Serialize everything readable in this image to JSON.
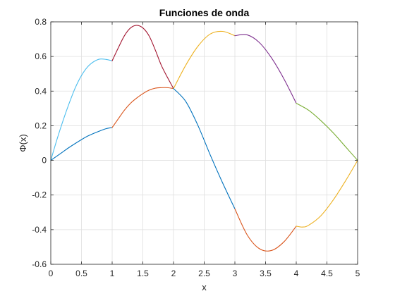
{
  "chart_data": {
    "type": "line",
    "title": "Funciones de onda",
    "xlabel": "x",
    "ylabel": "Φ(x)",
    "xlim": [
      0,
      5
    ],
    "ylim": [
      -0.6,
      0.8
    ],
    "xticks": [
      0,
      0.5,
      1,
      1.5,
      2,
      2.5,
      3,
      3.5,
      4,
      4.5,
      5
    ],
    "xtick_labels": [
      "0",
      "0.5",
      "1",
      "1.5",
      "2",
      "2.5",
      "3",
      "3.5",
      "4",
      "4.5",
      "5"
    ],
    "yticks": [
      -0.6,
      -0.4,
      -0.2,
      0,
      0.2,
      0.4,
      0.6,
      0.8
    ],
    "ytick_labels": [
      "-0.6",
      "-0.4",
      "-0.2",
      "0",
      "0.2",
      "0.4",
      "0.6",
      "0.8"
    ],
    "grid": true,
    "box": true,
    "series": [
      {
        "color": "#4DBEEE",
        "x": [
          0,
          0.1,
          0.2,
          0.3,
          0.4,
          0.5,
          0.6,
          0.7,
          0.8,
          0.9,
          1.0
        ],
        "y": [
          0,
          0.12,
          0.23,
          0.33,
          0.42,
          0.49,
          0.54,
          0.57,
          0.585,
          0.583,
          0.575
        ]
      },
      {
        "color": "#0072BD",
        "x": [
          0,
          0.1,
          0.2,
          0.3,
          0.4,
          0.5,
          0.6,
          0.7,
          0.8,
          0.9,
          1.0
        ],
        "y": [
          0,
          0.025,
          0.05,
          0.075,
          0.098,
          0.12,
          0.14,
          0.156,
          0.17,
          0.183,
          0.19
        ]
      },
      {
        "color": "#A2142F",
        "x": [
          1.0,
          1.1,
          1.2,
          1.3,
          1.4,
          1.5,
          1.6,
          1.7,
          1.8,
          1.9,
          2.0
        ],
        "y": [
          0.575,
          0.65,
          0.72,
          0.765,
          0.78,
          0.765,
          0.72,
          0.64,
          0.55,
          0.48,
          0.415
        ]
      },
      {
        "color": "#D95319",
        "x": [
          1.0,
          1.1,
          1.2,
          1.3,
          1.4,
          1.5,
          1.6,
          1.7,
          1.8,
          1.9,
          2.0
        ],
        "y": [
          0.19,
          0.24,
          0.29,
          0.33,
          0.36,
          0.385,
          0.405,
          0.417,
          0.42,
          0.42,
          0.415
        ]
      },
      {
        "color": "#EDB120",
        "x": [
          2.0,
          2.2,
          2.4,
          2.6,
          2.8,
          3.0
        ],
        "y": [
          0.415,
          0.55,
          0.66,
          0.73,
          0.745,
          0.72
        ]
      },
      {
        "color": "#0072BD",
        "x": [
          2.0,
          2.2,
          2.4,
          2.6,
          2.8,
          3.0
        ],
        "y": [
          0.415,
          0.34,
          0.2,
          0.03,
          -0.13,
          -0.28
        ]
      },
      {
        "color": "#7E2F8E",
        "x": [
          3.0,
          3.2,
          3.4,
          3.6,
          3.8,
          4.0
        ],
        "y": [
          0.72,
          0.725,
          0.68,
          0.59,
          0.47,
          0.33
        ]
      },
      {
        "color": "#D95319",
        "x": [
          3.0,
          3.2,
          3.4,
          3.6,
          3.8,
          4.0
        ],
        "y": [
          -0.28,
          -0.43,
          -0.51,
          -0.52,
          -0.47,
          -0.38
        ]
      },
      {
        "color": "#77AC30",
        "x": [
          4.0,
          4.2,
          4.4,
          4.6,
          4.8,
          5.0
        ],
        "y": [
          0.33,
          0.29,
          0.23,
          0.16,
          0.08,
          0
        ]
      },
      {
        "color": "#EDB120",
        "x": [
          4.0,
          4.1,
          4.2,
          4.4,
          4.6,
          4.8,
          5.0
        ],
        "y": [
          -0.38,
          -0.385,
          -0.375,
          -0.32,
          -0.23,
          -0.12,
          0
        ]
      }
    ]
  },
  "colors": {
    "axis": "#262626",
    "grid": "#DFDFDF",
    "background": "#FFFFFF"
  }
}
